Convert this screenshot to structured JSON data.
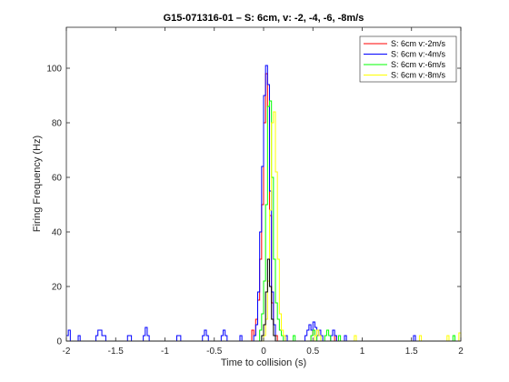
{
  "chart_data": {
    "type": "line",
    "title": "G15-071316-01 – S: 6cm, v: -2, -4, -6, -8m/s",
    "xlabel": "Time to collision (s)",
    "ylabel": "Firing Frequency (Hz)",
    "xlim": [
      -2,
      2
    ],
    "ylim": [
      0,
      115
    ],
    "xticks": [
      -2,
      -1.5,
      -1,
      -0.5,
      0,
      0.5,
      1,
      1.5,
      2
    ],
    "xtick_labels": [
      "-2",
      "-1.5",
      "-1",
      "-0.5",
      "0",
      "0.5",
      "1",
      "1.5",
      "2"
    ],
    "yticks": [
      0,
      20,
      40,
      60,
      80,
      100
    ],
    "ytick_labels": [
      "0",
      "20",
      "40",
      "60",
      "80",
      "100"
    ],
    "legend_position": "top-right",
    "series": [
      {
        "name": "S: 6cm v:-2m/s",
        "color": "#ff0000",
        "points": [
          [
            -2,
            0
          ],
          [
            -0.15,
            0
          ],
          [
            -0.12,
            4
          ],
          [
            -0.1,
            2
          ],
          [
            -0.08,
            8
          ],
          [
            -0.06,
            15
          ],
          [
            -0.04,
            30
          ],
          [
            -0.02,
            50
          ],
          [
            0,
            80
          ],
          [
            0.02,
            98
          ],
          [
            0.04,
            86
          ],
          [
            0.06,
            46
          ],
          [
            0.08,
            14
          ],
          [
            0.1,
            6
          ],
          [
            0.12,
            2
          ],
          [
            0.14,
            0
          ],
          [
            0.45,
            0
          ],
          [
            0.48,
            2
          ],
          [
            0.5,
            4
          ],
          [
            0.52,
            2
          ],
          [
            0.54,
            0
          ],
          [
            0.7,
            0
          ],
          [
            0.72,
            2
          ],
          [
            0.74,
            0
          ],
          [
            2,
            0
          ]
        ]
      },
      {
        "name": "S: 6cm v:-4m/s",
        "color": "#0000ff",
        "points": [
          [
            -2,
            2
          ],
          [
            -1.98,
            4
          ],
          [
            -1.96,
            0
          ],
          [
            -1.9,
            0
          ],
          [
            -1.88,
            2
          ],
          [
            -1.86,
            0
          ],
          [
            -1.72,
            0
          ],
          [
            -1.7,
            2
          ],
          [
            -1.68,
            4
          ],
          [
            -1.64,
            2
          ],
          [
            -1.6,
            0
          ],
          [
            -1.4,
            0
          ],
          [
            -1.38,
            2
          ],
          [
            -1.34,
            0
          ],
          [
            -1.24,
            0
          ],
          [
            -1.22,
            2
          ],
          [
            -1.2,
            5
          ],
          [
            -1.18,
            2
          ],
          [
            -1.16,
            0
          ],
          [
            -0.9,
            0
          ],
          [
            -0.88,
            2
          ],
          [
            -0.84,
            0
          ],
          [
            -0.64,
            0
          ],
          [
            -0.62,
            2
          ],
          [
            -0.6,
            4
          ],
          [
            -0.58,
            2
          ],
          [
            -0.56,
            0
          ],
          [
            -0.45,
            0
          ],
          [
            -0.43,
            2
          ],
          [
            -0.41,
            4
          ],
          [
            -0.39,
            2
          ],
          [
            -0.37,
            0
          ],
          [
            -0.26,
            0
          ],
          [
            -0.24,
            2
          ],
          [
            -0.22,
            0
          ],
          [
            -0.12,
            0
          ],
          [
            -0.1,
            2
          ],
          [
            -0.08,
            6
          ],
          [
            -0.06,
            18
          ],
          [
            -0.04,
            40
          ],
          [
            -0.02,
            64
          ],
          [
            0,
            90
          ],
          [
            0.02,
            101
          ],
          [
            0.04,
            94
          ],
          [
            0.06,
            55
          ],
          [
            0.08,
            18
          ],
          [
            0.1,
            6
          ],
          [
            0.12,
            0
          ],
          [
            0.2,
            0
          ],
          [
            0.22,
            2
          ],
          [
            0.24,
            0
          ],
          [
            0.4,
            0
          ],
          [
            0.42,
            2
          ],
          [
            0.44,
            4
          ],
          [
            0.46,
            6
          ],
          [
            0.48,
            4
          ],
          [
            0.5,
            7
          ],
          [
            0.52,
            5
          ],
          [
            0.54,
            2
          ],
          [
            0.56,
            4
          ],
          [
            0.58,
            2
          ],
          [
            0.6,
            0
          ],
          [
            0.66,
            0
          ],
          [
            0.68,
            2
          ],
          [
            0.7,
            4
          ],
          [
            0.72,
            2
          ],
          [
            0.74,
            0
          ],
          [
            0.8,
            0
          ],
          [
            0.82,
            2
          ],
          [
            0.84,
            0
          ],
          [
            1.5,
            0
          ],
          [
            1.52,
            2
          ],
          [
            1.54,
            0
          ],
          [
            2,
            0
          ]
        ]
      },
      {
        "name": "S: 6cm v:-6m/s",
        "color": "#00ff00",
        "points": [
          [
            -2,
            0
          ],
          [
            -0.06,
            0
          ],
          [
            -0.04,
            4
          ],
          [
            -0.02,
            10
          ],
          [
            0,
            22
          ],
          [
            0.02,
            50
          ],
          [
            0.04,
            86
          ],
          [
            0.06,
            88
          ],
          [
            0.08,
            60
          ],
          [
            0.1,
            30
          ],
          [
            0.12,
            14
          ],
          [
            0.14,
            8
          ],
          [
            0.16,
            4
          ],
          [
            0.18,
            2
          ],
          [
            0.2,
            0
          ],
          [
            0.28,
            0
          ],
          [
            0.3,
            2
          ],
          [
            0.32,
            0
          ],
          [
            0.46,
            0
          ],
          [
            0.48,
            2
          ],
          [
            0.5,
            4
          ],
          [
            0.52,
            2
          ],
          [
            0.54,
            0
          ],
          [
            0.6,
            0
          ],
          [
            0.62,
            2
          ],
          [
            0.64,
            4
          ],
          [
            0.66,
            2
          ],
          [
            0.68,
            0
          ],
          [
            0.74,
            0
          ],
          [
            0.76,
            2
          ],
          [
            0.78,
            0
          ],
          [
            1.9,
            0
          ],
          [
            1.92,
            2
          ],
          [
            1.94,
            0
          ],
          [
            2,
            0
          ]
        ]
      },
      {
        "name": "S: 6cm v:-8m/s",
        "color": "#ffff00",
        "points": [
          [
            -2,
            0
          ],
          [
            -0.02,
            0
          ],
          [
            0,
            2
          ],
          [
            0.02,
            8
          ],
          [
            0.04,
            22
          ],
          [
            0.06,
            48
          ],
          [
            0.08,
            80
          ],
          [
            0.1,
            84
          ],
          [
            0.12,
            62
          ],
          [
            0.14,
            30
          ],
          [
            0.16,
            10
          ],
          [
            0.18,
            4
          ],
          [
            0.2,
            2
          ],
          [
            0.22,
            0
          ],
          [
            0.5,
            0
          ],
          [
            0.52,
            2
          ],
          [
            0.54,
            4
          ],
          [
            0.56,
            2
          ],
          [
            0.58,
            0
          ],
          [
            0.9,
            0
          ],
          [
            0.92,
            2
          ],
          [
            0.94,
            0
          ],
          [
            1.56,
            0
          ],
          [
            1.58,
            2
          ],
          [
            1.6,
            0
          ],
          [
            1.84,
            0
          ],
          [
            1.86,
            2
          ],
          [
            1.88,
            0
          ],
          [
            1.96,
            0
          ],
          [
            1.98,
            3
          ],
          [
            2,
            0
          ]
        ]
      },
      {
        "name": "",
        "color": "#000000",
        "points": [
          [
            -2,
            0
          ],
          [
            -0.04,
            0
          ],
          [
            -0.02,
            2
          ],
          [
            0,
            6
          ],
          [
            0.02,
            18
          ],
          [
            0.04,
            30
          ],
          [
            0.06,
            20
          ],
          [
            0.08,
            8
          ],
          [
            0.1,
            2
          ],
          [
            0.12,
            0
          ],
          [
            2,
            0
          ]
        ]
      }
    ]
  }
}
